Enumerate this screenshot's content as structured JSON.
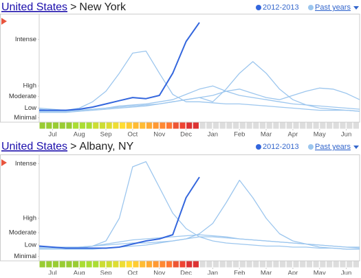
{
  "chart_data": [
    {
      "type": "line",
      "link": "United States",
      "separator": ">",
      "title": "New York",
      "x": [
        0,
        2,
        4,
        6,
        8,
        10,
        12,
        14,
        16,
        18,
        20,
        22,
        24,
        26,
        28,
        30,
        32,
        34,
        36,
        38,
        40,
        42,
        44,
        46,
        48
      ],
      "xlim": [
        0,
        48
      ],
      "xticks": [
        {
          "value": 2,
          "label": "Jul"
        },
        {
          "value": 6,
          "label": "Aug"
        },
        {
          "value": 10,
          "label": "Sep"
        },
        {
          "value": 14,
          "label": "Oct"
        },
        {
          "value": 18,
          "label": "Nov"
        },
        {
          "value": 22,
          "label": "Dec"
        },
        {
          "value": 26,
          "label": "Jan"
        },
        {
          "value": 30,
          "label": "Feb"
        },
        {
          "value": 34,
          "label": "Mar"
        },
        {
          "value": 38,
          "label": "Apr"
        },
        {
          "value": 42,
          "label": "May"
        },
        {
          "value": 46,
          "label": "Jun"
        }
      ],
      "ylim": [
        0,
        100
      ],
      "yticks": [
        {
          "value": 77,
          "label": "Intense"
        },
        {
          "value": 33,
          "label": "High"
        },
        {
          "value": 23,
          "label": "Moderate"
        },
        {
          "value": 12,
          "label": "Low"
        },
        {
          "value": 3,
          "label": "Minimal"
        }
      ],
      "series": [
        {
          "name": "2012-2013",
          "color": "#3366dd",
          "values": [
            10,
            10,
            10,
            11,
            13,
            16,
            19,
            22,
            21,
            24,
            45,
            75,
            93,
            null,
            null,
            null,
            null,
            null,
            null,
            null,
            null,
            null,
            null,
            null,
            null
          ]
        },
        {
          "name": "Past years",
          "color": "#9cc6ee",
          "lines": [
            [
              12,
              11,
              10,
              12,
              18,
              28,
              45,
              64,
              66,
              45,
              25,
              18,
              18,
              17,
              16,
              16,
              15,
              14,
              13,
              12,
              11,
              10,
              10,
              10,
              9
            ],
            [
              8,
              8,
              8,
              9,
              10,
              11,
              12,
              13,
              14,
              16,
              18,
              20,
              22,
              18,
              30,
              45,
              56,
              45,
              30,
              20,
              15,
              12,
              11,
              10,
              9
            ],
            [
              9,
              9,
              9,
              10,
              11,
              12,
              13,
              14,
              15,
              16,
              18,
              20,
              22,
              24,
              28,
              30,
              26,
              22,
              20,
              24,
              28,
              31,
              30,
              26,
              20
            ],
            [
              11,
              10,
              10,
              10,
              11,
              12,
              14,
              15,
              16,
              18,
              20,
              25,
              30,
              33,
              28,
              24,
              22,
              20,
              18,
              16,
              15,
              14,
              13,
              12,
              11
            ]
          ]
        }
      ],
      "week_colors": [
        "#99cc33",
        "#99cc33",
        "#99cc33",
        "#99cc33",
        "#99cc33",
        "#aadd33",
        "#aadd33",
        "#aadd33",
        "#ccdd33",
        "#ccdd33",
        "#dddd33",
        "#eedd33",
        "#ffdd33",
        "#ffcc33",
        "#ffbb33",
        "#ffbb33",
        "#ffaa33",
        "#ff9933",
        "#ff8833",
        "#ff7733",
        "#ee5533",
        "#ee4433",
        "#dd3333",
        "#dd3333"
      ],
      "no_data_color": "#dddddd"
    },
    {
      "type": "line",
      "link": "United States",
      "separator": ">",
      "title": "Albany, NY",
      "x": [
        0,
        2,
        4,
        6,
        8,
        10,
        12,
        14,
        16,
        18,
        20,
        22,
        24,
        26,
        28,
        30,
        32,
        34,
        36,
        38,
        40,
        42,
        44,
        46,
        48
      ],
      "xlim": [
        0,
        48
      ],
      "xticks": [
        {
          "value": 2,
          "label": "Jul"
        },
        {
          "value": 6,
          "label": "Aug"
        },
        {
          "value": 10,
          "label": "Sep"
        },
        {
          "value": 14,
          "label": "Oct"
        },
        {
          "value": 18,
          "label": "Nov"
        },
        {
          "value": 22,
          "label": "Dec"
        },
        {
          "value": 26,
          "label": "Jan"
        },
        {
          "value": 30,
          "label": "Feb"
        },
        {
          "value": 34,
          "label": "Mar"
        },
        {
          "value": 38,
          "label": "Apr"
        },
        {
          "value": 42,
          "label": "May"
        },
        {
          "value": 46,
          "label": "Jun"
        }
      ],
      "ylim": [
        0,
        100
      ],
      "yticks": [
        {
          "value": 93,
          "label": "Intense"
        },
        {
          "value": 40,
          "label": "High"
        },
        {
          "value": 26,
          "label": "Moderate"
        },
        {
          "value": 14,
          "label": "Low"
        },
        {
          "value": 3,
          "label": "Minimal"
        }
      ],
      "series": [
        {
          "name": "2012-2013",
          "color": "#3366dd",
          "values": [
            13,
            12,
            11,
            11,
            11,
            11,
            12,
            15,
            18,
            20,
            24,
            60,
            80,
            null,
            null,
            null,
            null,
            null,
            null,
            null,
            null,
            null,
            null,
            null,
            null
          ]
        },
        {
          "name": "Past years",
          "color": "#9cc6ee",
          "lines": [
            [
              13,
              12,
              11,
              11,
              13,
              18,
              40,
              90,
              95,
              70,
              45,
              30,
              22,
              18,
              16,
              15,
              14,
              13,
              13,
              12,
              12,
              11,
              11,
              10,
              10
            ],
            [
              10,
              10,
              10,
              10,
              10,
              11,
              12,
              13,
              14,
              16,
              18,
              20,
              25,
              35,
              55,
              77,
              60,
              40,
              25,
              18,
              15,
              12,
              11,
              10,
              10
            ],
            [
              12,
              12,
              12,
              12,
              13,
              14,
              15,
              16,
              16,
              17,
              18,
              20,
              22,
              22,
              21,
              20,
              19,
              18,
              17,
              16,
              15,
              14,
              13,
              12,
              12
            ],
            [
              11,
              11,
              11,
              12,
              13,
              15,
              17,
              19,
              20,
              21,
              22,
              23,
              24,
              23,
              22,
              20,
              19,
              18,
              17,
              16,
              15,
              14,
              13,
              12,
              11
            ]
          ]
        }
      ],
      "week_colors": [
        "#99cc33",
        "#99cc33",
        "#99cc33",
        "#99cc33",
        "#99cc33",
        "#99cc33",
        "#aadd33",
        "#aadd33",
        "#aadd33",
        "#ccdd33",
        "#ccdd33",
        "#dddd33",
        "#eedd33",
        "#ffdd33",
        "#ffcc33",
        "#ffbb33",
        "#ffaa33",
        "#ff9933",
        "#ff8833",
        "#ff7733",
        "#ee5533",
        "#ee4433",
        "#dd3333",
        "#dd3333"
      ],
      "no_data_color": "#dddddd"
    }
  ]
}
